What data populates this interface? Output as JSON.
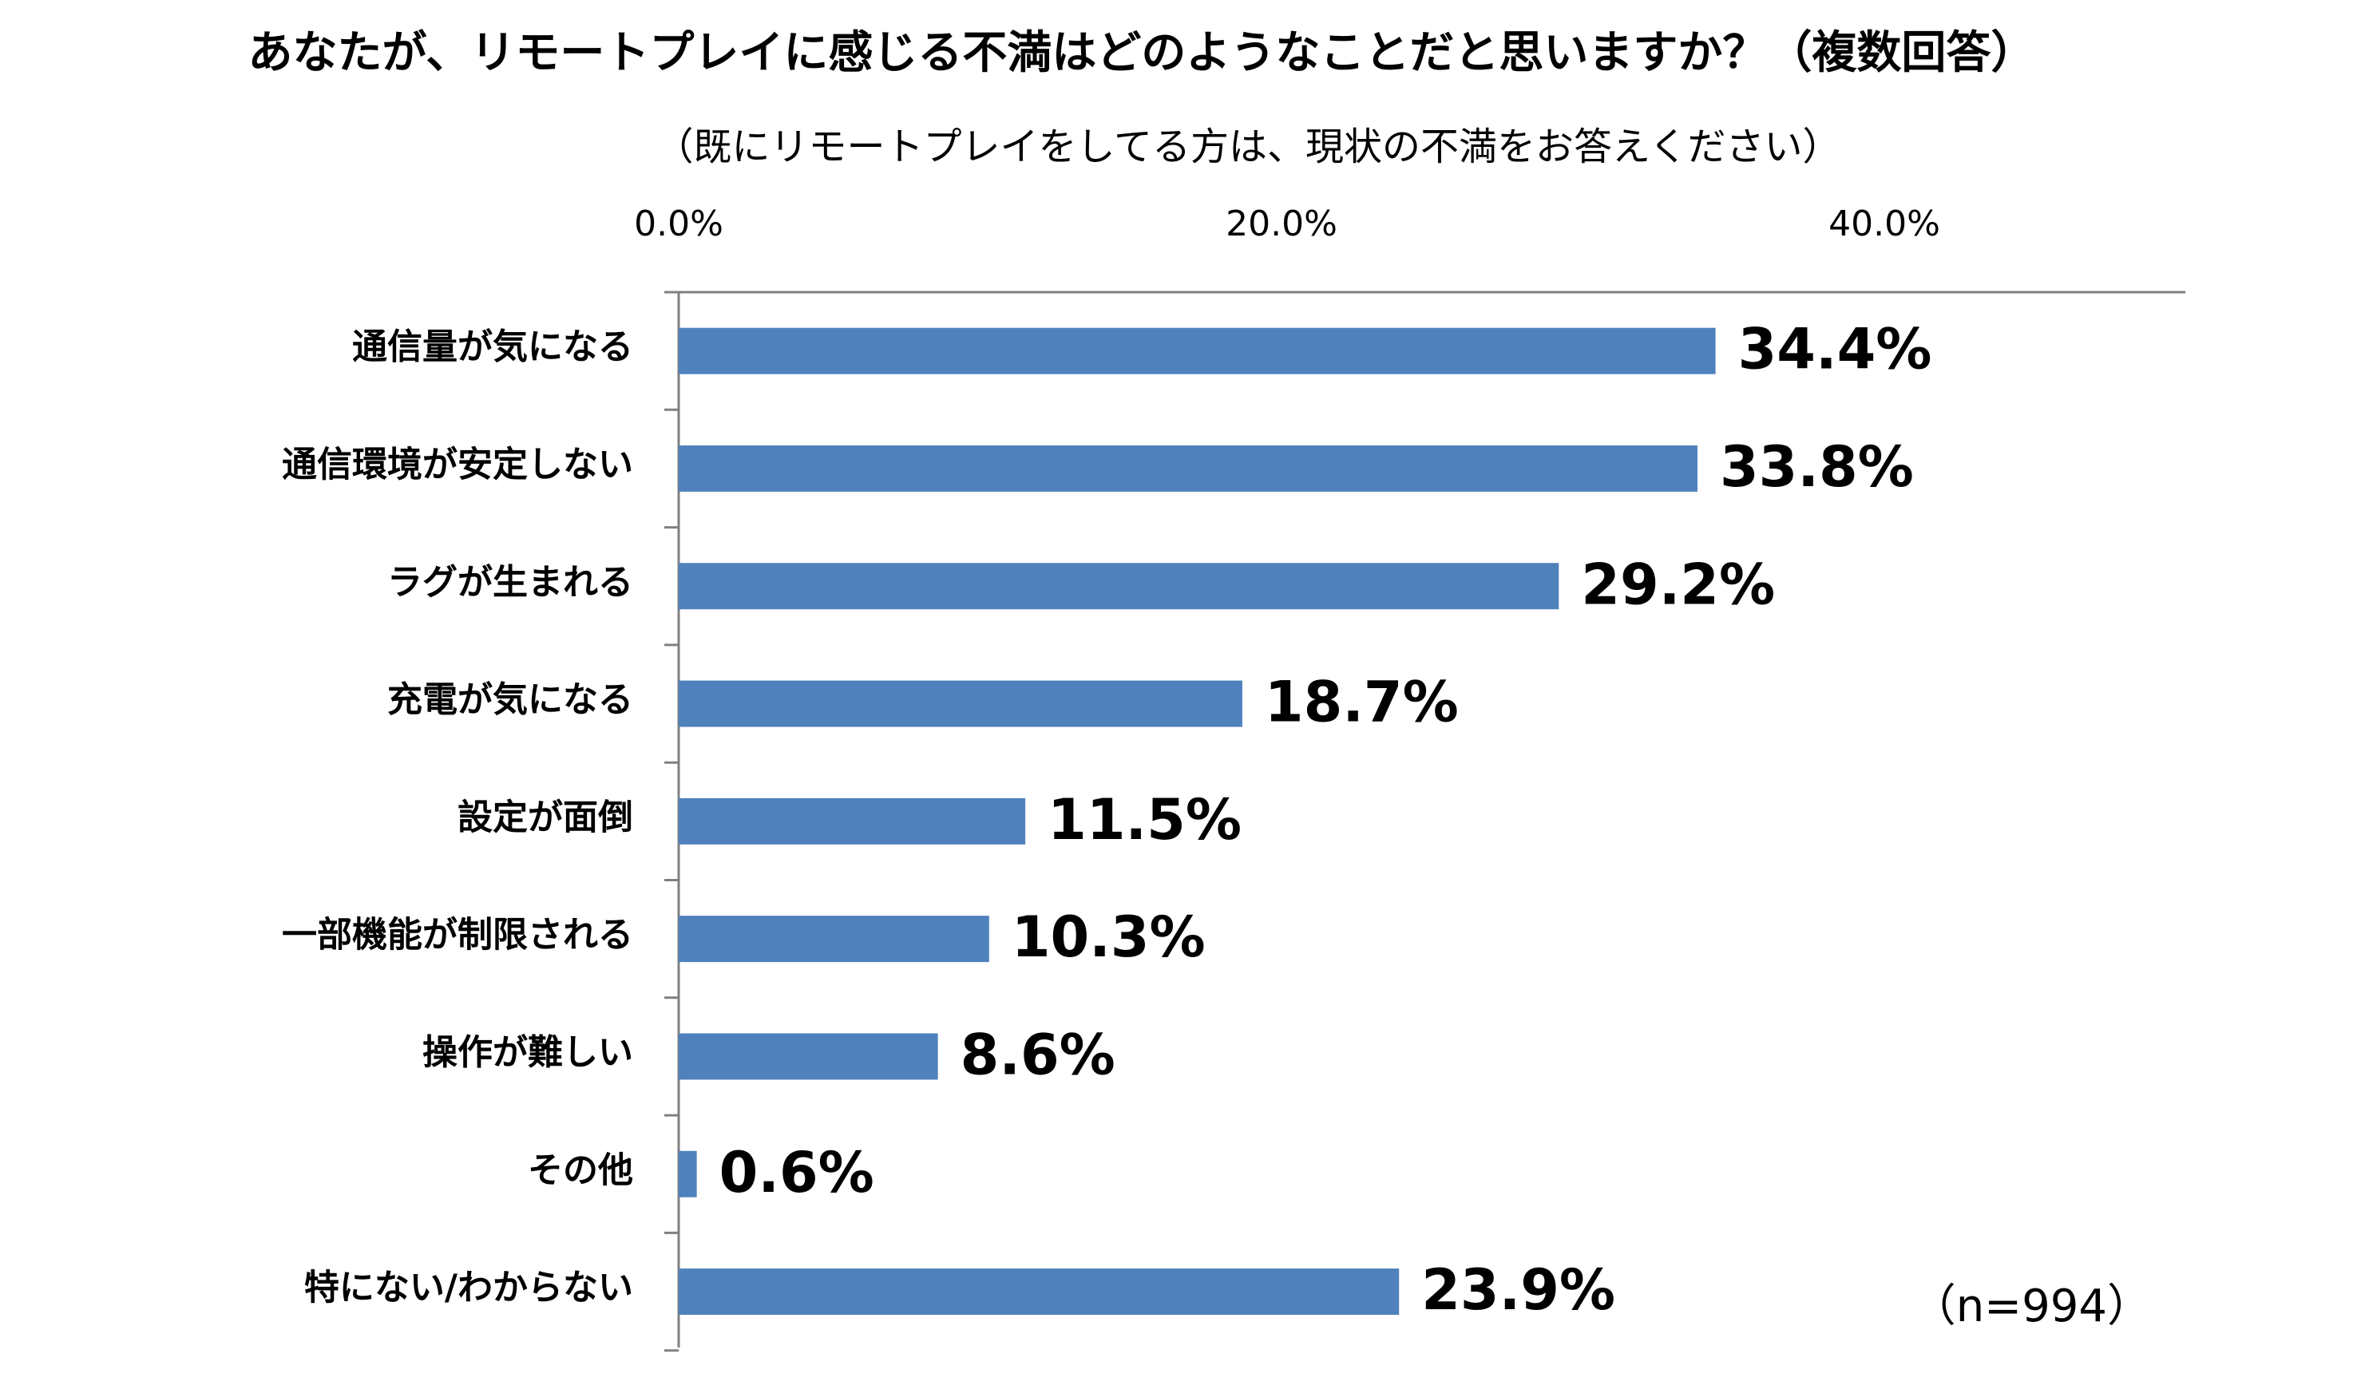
{
  "chart_data": {
    "type": "bar",
    "orientation": "horizontal",
    "title": "あなたが、リモートプレイに感じる不満はどのようなことだと思いますか？（複数回答）",
    "subtitle": "（既にリモートプレイをしてる方は、現状の不満をお答えください）",
    "categories": [
      "通信量が気になる",
      "通信環境が安定しない",
      "ラグが生まれる",
      "充電が気になる",
      "設定が面倒",
      "一部機能が制限される",
      "操作が難しい",
      "その他",
      "特にない/わからない"
    ],
    "values": [
      34.4,
      33.8,
      29.2,
      18.7,
      11.5,
      10.3,
      8.6,
      0.6,
      23.9
    ],
    "value_labels": [
      "34.4%",
      "33.8%",
      "29.2%",
      "18.7%",
      "11.5%",
      "10.3%",
      "8.6%",
      "0.6%",
      "23.9%"
    ],
    "x_ticks": [
      0,
      20,
      40
    ],
    "x_tick_labels": [
      "0.0%",
      "20.0%",
      "40.0%"
    ],
    "xlim": [
      0,
      50
    ],
    "axis_position": "top",
    "sample_note": "（n=994）",
    "bar_color": "#4F81BD",
    "axis_color": "#808080",
    "text_color": "#000000"
  }
}
